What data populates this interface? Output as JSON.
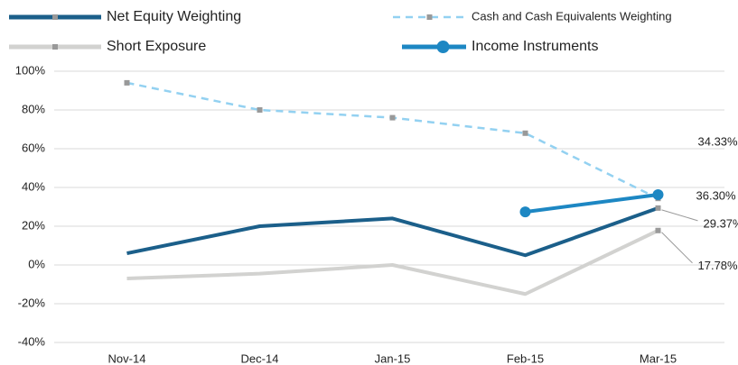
{
  "chart_data": {
    "type": "line",
    "categories": [
      "Nov-14",
      "Dec-14",
      "Jan-15",
      "Feb-15",
      "Mar-15"
    ],
    "series": [
      {
        "name": "Net Equity Weighting",
        "color": "#1b5f8a",
        "marker": "square",
        "dash": false,
        "values": [
          6,
          20,
          24,
          5,
          29.37
        ],
        "value_labels": [
          null,
          null,
          null,
          null,
          "29.37%"
        ]
      },
      {
        "name": "Cash and Cash Equivalents Weighting",
        "color": "#93d1f1",
        "marker": "square",
        "dash": true,
        "values": [
          94,
          80,
          76,
          68,
          34.33
        ],
        "value_labels": [
          null,
          null,
          null,
          null,
          "34.33%"
        ]
      },
      {
        "name": "Short Exposure",
        "color": "#d2d2d0",
        "marker": "square",
        "dash": false,
        "values": [
          -7,
          -4.5,
          0,
          -15,
          17.78
        ],
        "value_labels": [
          null,
          null,
          null,
          null,
          "17.78%"
        ]
      },
      {
        "name": "Income Instruments",
        "color": "#1d87c3",
        "marker": "circle",
        "dash": false,
        "values": [
          null,
          null,
          null,
          27.4,
          36.3
        ],
        "value_labels": [
          null,
          null,
          null,
          null,
          "36.30%"
        ]
      }
    ],
    "ylim": [
      -40,
      100
    ],
    "yticks": [
      {
        "value": -40,
        "label": "-40%"
      },
      {
        "value": -20,
        "label": "-20%"
      },
      {
        "value": 0,
        "label": "0%"
      },
      {
        "value": 20,
        "label": "20%"
      },
      {
        "value": 40,
        "label": "40%"
      },
      {
        "value": 60,
        "label": "60%"
      },
      {
        "value": 80,
        "label": "80%"
      },
      {
        "value": 100,
        "label": "100%"
      }
    ],
    "grid": true
  }
}
